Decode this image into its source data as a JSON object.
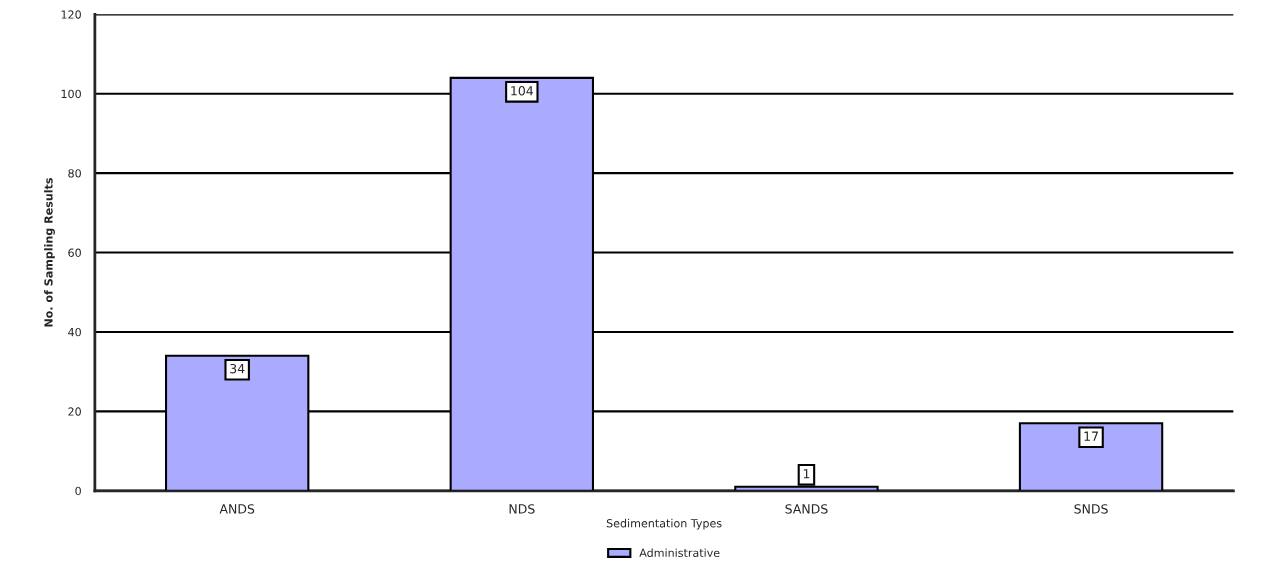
{
  "chart_data": {
    "type": "bar",
    "xlabel": "Sedimentation Types",
    "ylabel": "No. of Sampling Results",
    "categories": [
      "ANDS",
      "NDS",
      "SANDS",
      "SNDS"
    ],
    "series": [
      {
        "name": "Administrative",
        "color": "#aaaaff",
        "values": [
          34,
          104,
          1,
          17
        ]
      }
    ],
    "ylim": [
      0,
      120
    ],
    "yticks": [
      0,
      20,
      40,
      60,
      80,
      100,
      120
    ],
    "grid": "y",
    "legend": "bottom",
    "data_labels": true
  }
}
